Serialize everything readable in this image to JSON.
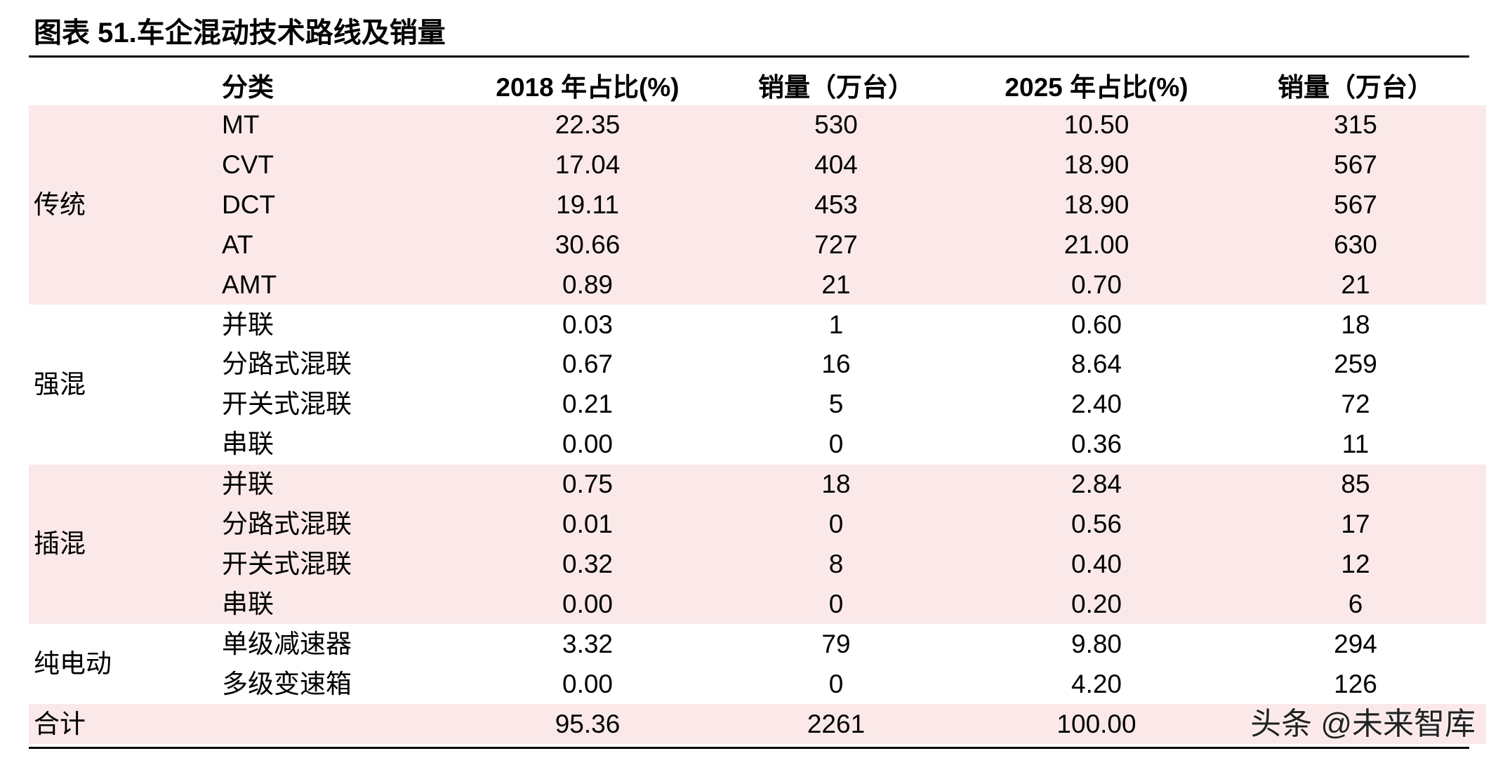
{
  "title": "图表 51.车企混动技术路线及销量",
  "table": {
    "header": [
      "分类",
      "2018 年占比(%)",
      "销量（万台）",
      "2025 年占比(%)",
      "销量（万台）"
    ],
    "groups": [
      {
        "name": "传统",
        "rows": [
          [
            "MT",
            "22.35",
            "530",
            "10.50",
            "315"
          ],
          [
            "CVT",
            "17.04",
            "404",
            "18.90",
            "567"
          ],
          [
            "DCT",
            "19.11",
            "453",
            "18.90",
            "567"
          ],
          [
            "AT",
            "30.66",
            "727",
            "21.00",
            "630"
          ],
          [
            "AMT",
            "0.89",
            "21",
            "0.70",
            "21"
          ]
        ]
      },
      {
        "name": "强混",
        "rows": [
          [
            "并联",
            "0.03",
            "1",
            "0.60",
            "18"
          ],
          [
            "分路式混联",
            "0.67",
            "16",
            "8.64",
            "259"
          ],
          [
            "开关式混联",
            "0.21",
            "5",
            "2.40",
            "72"
          ],
          [
            "串联",
            "0.00",
            "0",
            "0.36",
            "11"
          ]
        ]
      },
      {
        "name": "插混",
        "rows": [
          [
            "并联",
            "0.75",
            "18",
            "2.84",
            "85"
          ],
          [
            "分路式混联",
            "0.01",
            "0",
            "0.56",
            "17"
          ],
          [
            "开关式混联",
            "0.32",
            "8",
            "0.40",
            "12"
          ],
          [
            "串联",
            "0.00",
            "0",
            "0.20",
            "6"
          ]
        ]
      },
      {
        "name": "纯电动",
        "rows": [
          [
            "单级减速器",
            "3.32",
            "79",
            "9.80",
            "294"
          ],
          [
            "多级变速箱",
            "0.00",
            "0",
            "4.20",
            "126"
          ]
        ]
      }
    ],
    "total": {
      "label": "合计",
      "values": [
        "95.36",
        "2261",
        "100.00"
      ]
    }
  },
  "watermark": "头条 @未来智库"
}
